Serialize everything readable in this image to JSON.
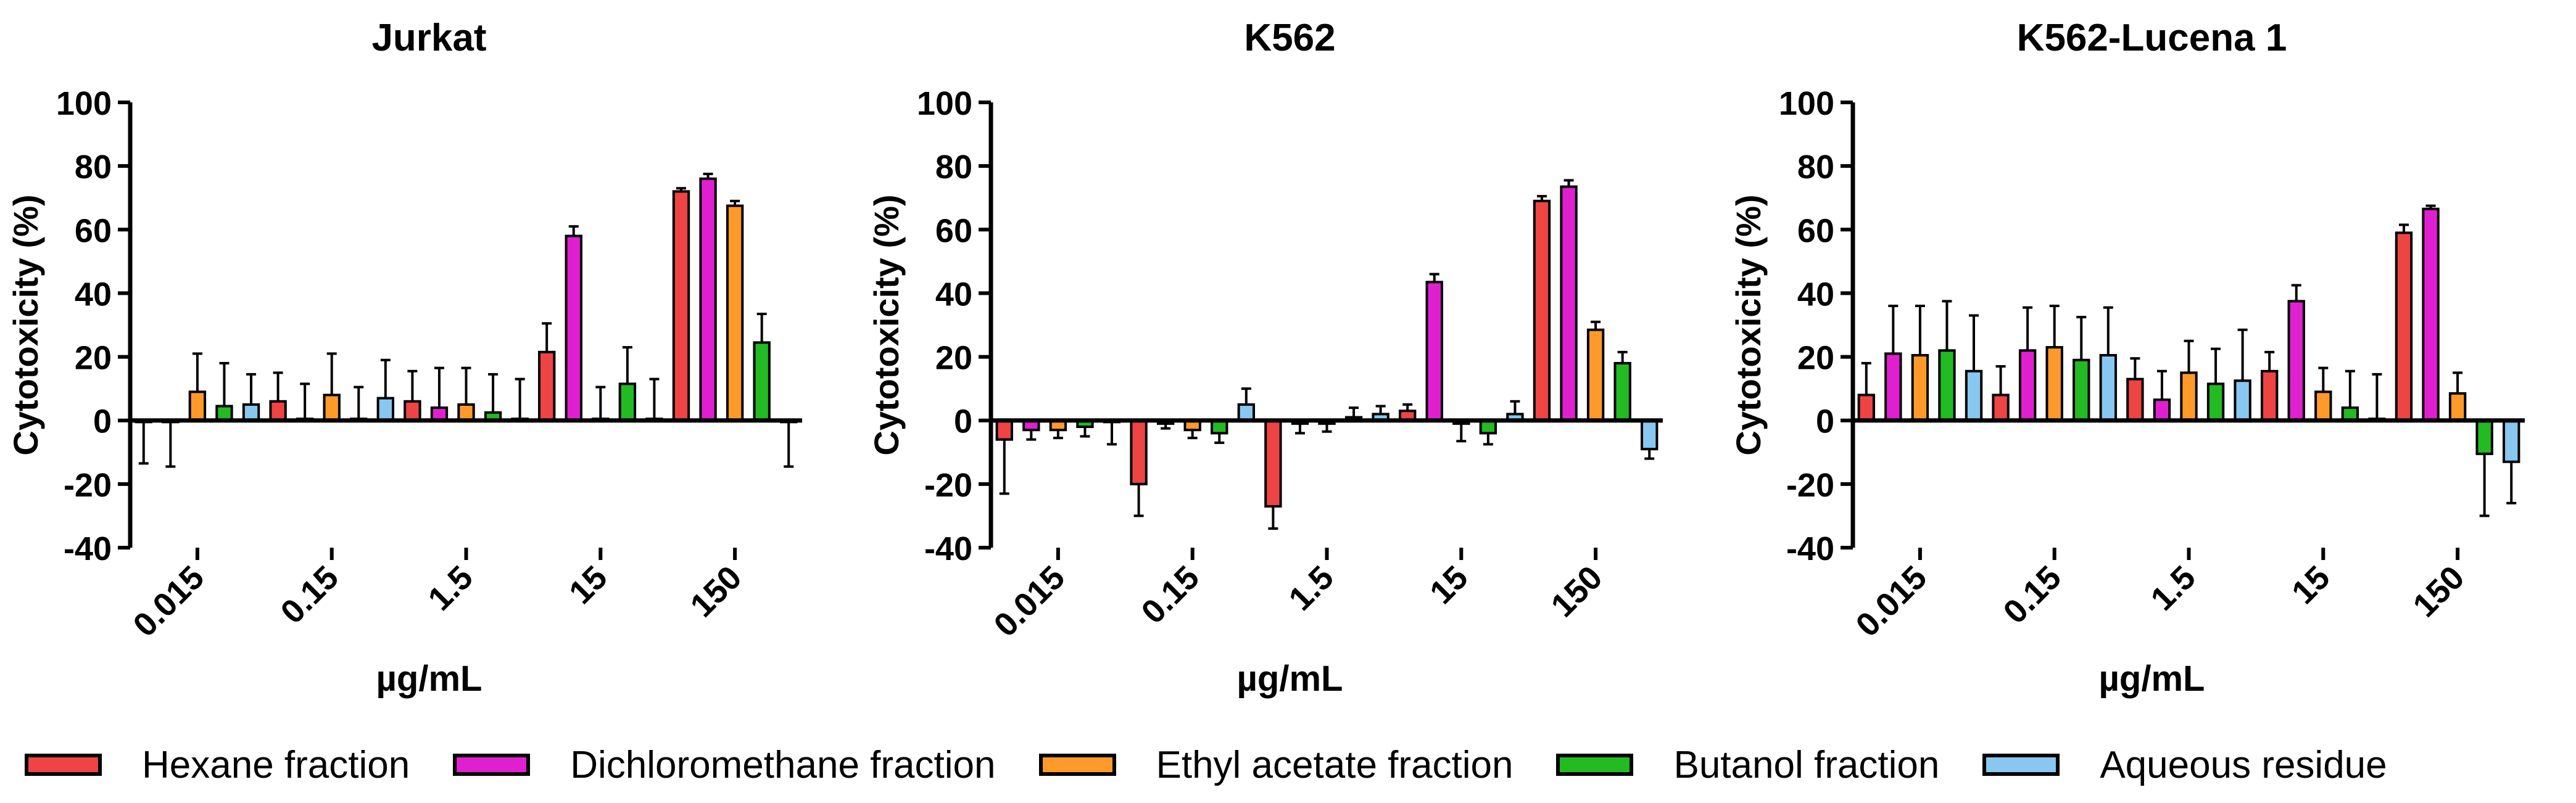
{
  "chart_data": [
    {
      "type": "bar",
      "title": "Jurkat",
      "xlabel": "µg/mL",
      "ylabel": "Cytotoxicity (%)",
      "ylim": [
        -40,
        100
      ],
      "yticks": [
        "-40",
        "-20",
        "0",
        "20",
        "40",
        "60",
        "80",
        "100"
      ],
      "categories": [
        "0.015",
        "0.15",
        "1.5",
        "15",
        "150"
      ],
      "series": [
        {
          "name": "Hexane fraction",
          "values": [
            -0.5,
            6,
            6,
            21.5,
            72
          ],
          "errors": [
            13,
            9,
            9.5,
            9,
            1
          ]
        },
        {
          "name": "Dichloromethane fraction",
          "values": [
            -0.5,
            0.5,
            4,
            58,
            76
          ],
          "errors": [
            14,
            11,
            12.5,
            3,
            1.5
          ]
        },
        {
          "name": "Ethyl acetate fraction",
          "values": [
            9,
            8,
            5,
            0.5,
            67.5
          ],
          "errors": [
            12,
            13,
            11.5,
            10,
            1.5
          ]
        },
        {
          "name": "Butanol fraction",
          "values": [
            4.5,
            0.5,
            2.5,
            11.5,
            24.5
          ],
          "errors": [
            13.5,
            10,
            12,
            11.5,
            9
          ]
        },
        {
          "name": "Aqueous residue",
          "values": [
            5,
            7,
            0.5,
            0.5,
            -0.5
          ],
          "errors": [
            9.5,
            12,
            12.5,
            12.5,
            14
          ]
        }
      ]
    },
    {
      "type": "bar",
      "title": "K562",
      "xlabel": "µg/mL",
      "ylabel": "Cytotoxicity (%)",
      "ylim": [
        -40,
        100
      ],
      "yticks": [
        "-40",
        "-20",
        "0",
        "20",
        "40",
        "60",
        "80",
        "100"
      ],
      "categories": [
        "0.015",
        "0.15",
        "1.5",
        "15",
        "150"
      ],
      "series": [
        {
          "name": "Hexane fraction",
          "values": [
            -6,
            -20,
            -27,
            3,
            69
          ],
          "errors": [
            17,
            10,
            7,
            2,
            1.5
          ]
        },
        {
          "name": "Dichloromethane fraction",
          "values": [
            -3,
            -1,
            -1,
            43.5,
            73.5
          ],
          "errors": [
            3,
            1.5,
            3,
            2.5,
            2
          ]
        },
        {
          "name": "Ethyl acetate fraction",
          "values": [
            -3,
            -3,
            -1,
            -1,
            28.5
          ],
          "errors": [
            2.5,
            2.5,
            2.5,
            5.5,
            2.5
          ]
        },
        {
          "name": "Butanol fraction",
          "values": [
            -2,
            -4,
            1,
            -4,
            18
          ],
          "errors": [
            3,
            3,
            3,
            3.5,
            3.5
          ]
        },
        {
          "name": "Aqueous residue",
          "values": [
            -0.5,
            5,
            2,
            2,
            -9
          ],
          "errors": [
            7,
            5,
            2.5,
            4,
            3
          ]
        }
      ]
    },
    {
      "type": "bar",
      "title": "K562-Lucena 1",
      "xlabel": "µg/mL",
      "ylabel": "Cytotoxicity (%)",
      "ylim": [
        -40,
        100
      ],
      "yticks": [
        "-40",
        "-20",
        "0",
        "20",
        "40",
        "60",
        "80",
        "100"
      ],
      "categories": [
        "0.015",
        "0.15",
        "1.5",
        "15",
        "150"
      ],
      "series": [
        {
          "name": "Hexane fraction",
          "values": [
            8,
            8,
            13,
            15.5,
            59
          ],
          "errors": [
            10,
            9,
            6.5,
            6,
            2.5
          ]
        },
        {
          "name": "Dichloromethane fraction",
          "values": [
            21,
            22,
            6.5,
            37.5,
            66.5
          ],
          "errors": [
            15,
            13.5,
            9,
            5,
            1
          ]
        },
        {
          "name": "Ethyl acetate fraction",
          "values": [
            20.5,
            23,
            15,
            9,
            8.5
          ],
          "errors": [
            15.5,
            13,
            10,
            7.5,
            6.5
          ]
        },
        {
          "name": "Butanol fraction",
          "values": [
            22,
            19,
            11.5,
            4,
            -10.5
          ],
          "errors": [
            15.5,
            13.5,
            11,
            11.5,
            19.5
          ]
        },
        {
          "name": "Aqueous residue",
          "values": [
            15.5,
            20.5,
            12.5,
            0.5,
            -13
          ],
          "errors": [
            17.5,
            15,
            16,
            14,
            13
          ]
        }
      ]
    }
  ],
  "legend": {
    "items": [
      {
        "label": "Hexane fraction",
        "color": "#ee4444"
      },
      {
        "label": "Dichloromethane fraction",
        "color": "#e020d0"
      },
      {
        "label": "Ethyl acetate fraction",
        "color": "#ff9a2a"
      },
      {
        "label": "Butanol fraction",
        "color": "#22bb22"
      },
      {
        "label": "Aqueous residue",
        "color": "#88c8f0"
      }
    ]
  }
}
